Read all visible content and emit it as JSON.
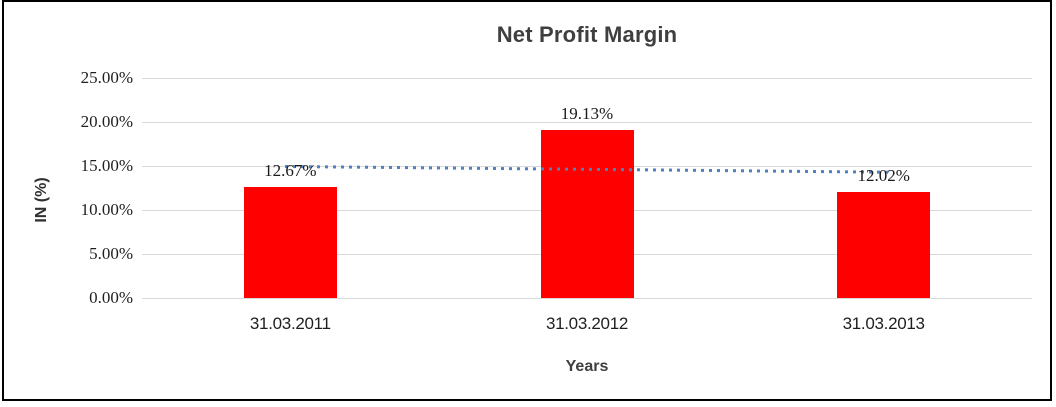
{
  "chart_data": {
    "type": "bar",
    "title": "Net Profit Margin",
    "xlabel": "Years",
    "ylabel": "IN (%)",
    "categories": [
      "31.03.2011",
      "31.03.2012",
      "31.03.2013"
    ],
    "values": [
      12.67,
      19.13,
      12.02
    ],
    "data_labels": [
      "12.67%",
      "19.13%",
      "12.02%"
    ],
    "ylim": [
      0,
      25
    ],
    "ytick_step": 5,
    "ytick_labels": [
      "0.00%",
      "5.00%",
      "10.00%",
      "15.00%",
      "20.00%",
      "25.00%"
    ],
    "grid": true,
    "legend": "none",
    "trendline": {
      "type": "linear",
      "style": "dotted"
    },
    "colors": {
      "bar": "#FF0000",
      "trendline": "#4E81BD",
      "gridline": "#D9D9D9",
      "title_text": "#3F3F3F",
      "axis_text": "#1F1F1F",
      "frame_border": "#000000",
      "background": "#FFFFFF"
    }
  }
}
